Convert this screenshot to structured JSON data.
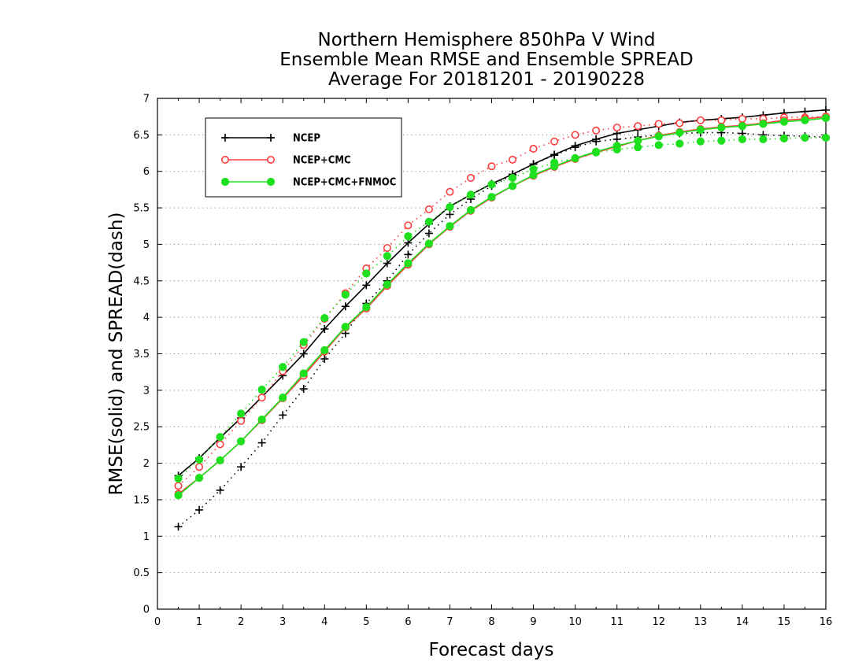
{
  "chart_data": {
    "type": "line",
    "title_lines": [
      "Northern Hemisphere 850hPa V Wind",
      "Ensemble Mean RMSE and Ensemble SPREAD",
      "Average For 20181201 - 20190228"
    ],
    "xlabel": "Forecast days",
    "ylabel": "RMSE(solid) and SPREAD(dash)",
    "xlim": [
      0,
      16
    ],
    "ylim": [
      0,
      7
    ],
    "xticks": [
      "0",
      "1",
      "2",
      "3",
      "4",
      "5",
      "6",
      "7",
      "8",
      "9",
      "10",
      "11",
      "12",
      "13",
      "14",
      "15",
      "16"
    ],
    "yticks": [
      "0",
      "0.5",
      "1",
      "1.5",
      "2",
      "2.5",
      "3",
      "3.5",
      "4",
      "4.5",
      "5",
      "5.5",
      "6",
      "6.5",
      "7"
    ],
    "grid": true,
    "legend_position": "top-left",
    "x": [
      0.5,
      1,
      1.5,
      2,
      2.5,
      3,
      3.5,
      4,
      4.5,
      5,
      5.5,
      6,
      6.5,
      7,
      7.5,
      8,
      8.5,
      9,
      9.5,
      10,
      10.5,
      11,
      11.5,
      12,
      12.5,
      13,
      13.5,
      14,
      14.5,
      15,
      15.5,
      16
    ],
    "series": [
      {
        "name": "NCEP",
        "color": "#000000",
        "marker": "plus",
        "rmse": [
          1.83,
          2.07,
          2.35,
          2.62,
          2.91,
          3.2,
          3.5,
          3.84,
          4.15,
          4.44,
          4.74,
          5.02,
          5.28,
          5.52,
          5.68,
          5.83,
          5.96,
          6.1,
          6.23,
          6.35,
          6.44,
          6.52,
          6.57,
          6.62,
          6.67,
          6.7,
          6.72,
          6.74,
          6.77,
          6.8,
          6.82,
          6.84
        ],
        "spread": [
          1.13,
          1.36,
          1.63,
          1.95,
          2.28,
          2.66,
          3.02,
          3.43,
          3.78,
          4.19,
          4.5,
          4.86,
          5.15,
          5.41,
          5.62,
          5.8,
          5.95,
          6.1,
          6.22,
          6.33,
          6.41,
          6.44,
          6.47,
          6.5,
          6.52,
          6.53,
          6.53,
          6.52,
          6.5,
          6.49,
          6.48,
          6.47
        ]
      },
      {
        "name": "NCEP+CMC",
        "color": "#ff3b3b",
        "marker": "circle-open",
        "rmse": [
          1.58,
          1.8,
          2.04,
          2.3,
          2.59,
          2.89,
          3.2,
          3.53,
          3.86,
          4.12,
          4.43,
          4.72,
          5.0,
          5.24,
          5.46,
          5.64,
          5.8,
          5.94,
          6.06,
          6.17,
          6.26,
          6.34,
          6.42,
          6.49,
          6.54,
          6.58,
          6.61,
          6.63,
          6.66,
          6.7,
          6.72,
          6.75
        ],
        "spread": [
          1.69,
          1.95,
          2.26,
          2.58,
          2.9,
          3.26,
          3.62,
          3.98,
          4.33,
          4.67,
          4.95,
          5.26,
          5.48,
          5.72,
          5.91,
          6.07,
          6.16,
          6.31,
          6.41,
          6.5,
          6.56,
          6.6,
          6.62,
          6.65,
          6.66,
          6.7,
          6.7,
          6.72,
          6.72,
          6.74,
          6.74,
          6.75
        ]
      },
      {
        "name": "NCEP+CMC+FNMOC",
        "color": "#1ee01e",
        "marker": "circle-filled",
        "rmse": [
          1.56,
          1.8,
          2.04,
          2.3,
          2.6,
          2.9,
          3.23,
          3.55,
          3.87,
          4.14,
          4.45,
          4.74,
          5.01,
          5.25,
          5.47,
          5.65,
          5.8,
          5.95,
          6.07,
          6.18,
          6.27,
          6.35,
          6.42,
          6.48,
          6.53,
          6.57,
          6.6,
          6.62,
          6.65,
          6.68,
          6.7,
          6.73
        ],
        "spread": [
          1.79,
          2.05,
          2.36,
          2.68,
          3.01,
          3.32,
          3.66,
          3.99,
          4.31,
          4.6,
          4.84,
          5.11,
          5.31,
          5.51,
          5.68,
          5.82,
          5.91,
          6.03,
          6.12,
          6.18,
          6.26,
          6.3,
          6.33,
          6.36,
          6.38,
          6.41,
          6.42,
          6.44,
          6.44,
          6.45,
          6.46,
          6.46
        ]
      }
    ]
  }
}
